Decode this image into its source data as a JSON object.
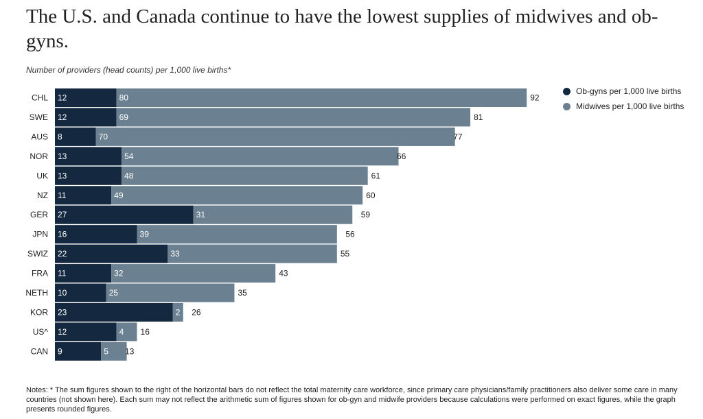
{
  "title": "The U.S. and Canada continue to have the lowest supplies of midwives and ob-gyns.",
  "subtitle": "Number of providers (head counts) per 1,000 live births*",
  "legend": {
    "obgyn": "Ob-gyns per 1,000 live births",
    "midwife": "Midwives per 1,000 live births"
  },
  "colors": {
    "obgyn": "#14283f",
    "midwife": "#6b8192"
  },
  "notes": "Notes: * The sum figures shown to the right of the horizontal bars do not reflect the total maternity care workforce, since primary care physicians/family practitioners also deliver some care in many countries (not shown here). Each sum may not reflect the arithmetic sum of figures shown for ob-gyn and midwife providers because calculations were performed on exact figures, while the graph presents rounded figures.",
  "chart_data": {
    "type": "bar",
    "orientation": "horizontal",
    "stacked": true,
    "title": "The U.S. and Canada continue to have the lowest supplies of midwives and ob-gyns.",
    "subtitle": "Number of providers (head counts) per 1,000 live births*",
    "categories": [
      "CHL",
      "SWE",
      "AUS",
      "NOR",
      "UK",
      "NZ",
      "GER",
      "JPN",
      "SWIZ",
      "FRA",
      "NETH",
      "KOR",
      "US^",
      "CAN"
    ],
    "series": [
      {
        "name": "Ob-gyns per 1,000 live births",
        "values": [
          12,
          12,
          8,
          13,
          13,
          11,
          27,
          16,
          22,
          11,
          10,
          23,
          12,
          9
        ]
      },
      {
        "name": "Midwives per 1,000 live births",
        "values": [
          80,
          69,
          70,
          54,
          48,
          49,
          31,
          39,
          33,
          32,
          25,
          2,
          4,
          5
        ]
      }
    ],
    "totals": [
      92,
      81,
      77,
      66,
      61,
      60,
      59,
      56,
      55,
      43,
      35,
      26,
      16,
      13
    ],
    "grid": false,
    "legend_position": "top-right"
  }
}
